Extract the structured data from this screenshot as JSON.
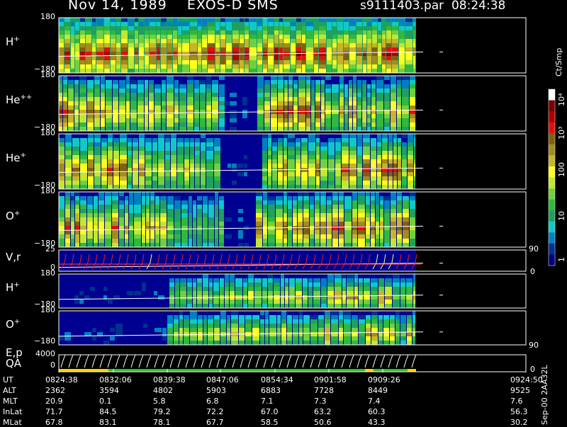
{
  "header": {
    "title": "Nov 14, 1989    EXOS-D SMS",
    "file_info": "s9111403.par  08:24:38"
  },
  "colorbar": {
    "unit_label": "Ct/Smp",
    "ticks": [
      "10⁴",
      "10³",
      "100",
      "10",
      "1"
    ],
    "colors": [
      "#ffffff",
      "#7a0000",
      "#b00000",
      "#e01010",
      "#806010",
      "#a08c20",
      "#c8b428",
      "#ffff20",
      "#c0e830",
      "#70d040",
      "#30b840",
      "#20a060",
      "#10c8c8",
      "#0080c0",
      "#003090",
      "#000080"
    ]
  },
  "panels": [
    {
      "label": "H",
      "sup": "+",
      "ymax": "180",
      "ymin": "−180"
    },
    {
      "label": "He",
      "sup": "++",
      "ymax": "180",
      "ymin": "−180"
    },
    {
      "label": "He",
      "sup": "+",
      "ymax": "180",
      "ymin": "−180"
    },
    {
      "label": "O",
      "sup": "+",
      "ymax": "180",
      "ymin": "−180"
    },
    {
      "label": "V,r",
      "sup": "",
      "ymax": "25",
      "ymin": "0",
      "rmax": "90",
      "rmin": "0"
    },
    {
      "label": "H",
      "sup": "+",
      "ymax": "180",
      "ymin": "−180"
    },
    {
      "label": "O",
      "sup": "+",
      "ymax": "180",
      "ymin": "−180",
      "rmax": "90"
    },
    {
      "label": "E,p",
      "label2": "QA",
      "sup": "",
      "ymax": "4000",
      "ymin": "0",
      "rmin": "0"
    }
  ],
  "footer": {
    "rows": [
      {
        "name": "UT",
        "values": [
          "0824:38",
          "0832:06",
          "0839:38",
          "0847:06",
          "0854:34",
          "0901:58",
          "0909:26",
          "0924:50"
        ]
      },
      {
        "name": "ALT",
        "values": [
          "2362",
          "3594",
          "4802",
          "5903",
          "6883",
          "7728",
          "8449",
          "9525"
        ]
      },
      {
        "name": "MLT",
        "values": [
          "20.9",
          "0.1",
          "5.8",
          "6.8",
          "7.1",
          "7.3",
          "7.4",
          "7.6"
        ]
      },
      {
        "name": "InLat",
        "values": [
          "71.7",
          "84.5",
          "79.2",
          "72.2",
          "67.0",
          "63.2",
          "60.3",
          "56.3"
        ]
      },
      {
        "name": "MLat",
        "values": [
          "67.8",
          "83.1",
          "78.1",
          "67.7",
          "58.5",
          "50.6",
          "43.3",
          "30.2"
        ]
      }
    ],
    "stamp": "Sep-00 2AA32L"
  },
  "chart_data": {
    "type": "heatmap",
    "title": "Nov 14, 1989    EXOS-D SMS",
    "x_ticks": [
      "0824:38",
      "0832:06",
      "0839:38",
      "0847:06",
      "0854:34",
      "0901:58",
      "0909:26",
      "0924:50"
    ],
    "y_range": [
      -180,
      180
    ],
    "colorbar_range": [
      1,
      10000
    ],
    "colorbar_scale": "log",
    "series": [
      {
        "name": "H+"
      },
      {
        "name": "He++"
      },
      {
        "name": "He+"
      },
      {
        "name": "O+"
      },
      {
        "name": "V,r"
      },
      {
        "name": "H+"
      },
      {
        "name": "O+"
      },
      {
        "name": "E,p"
      }
    ]
  }
}
